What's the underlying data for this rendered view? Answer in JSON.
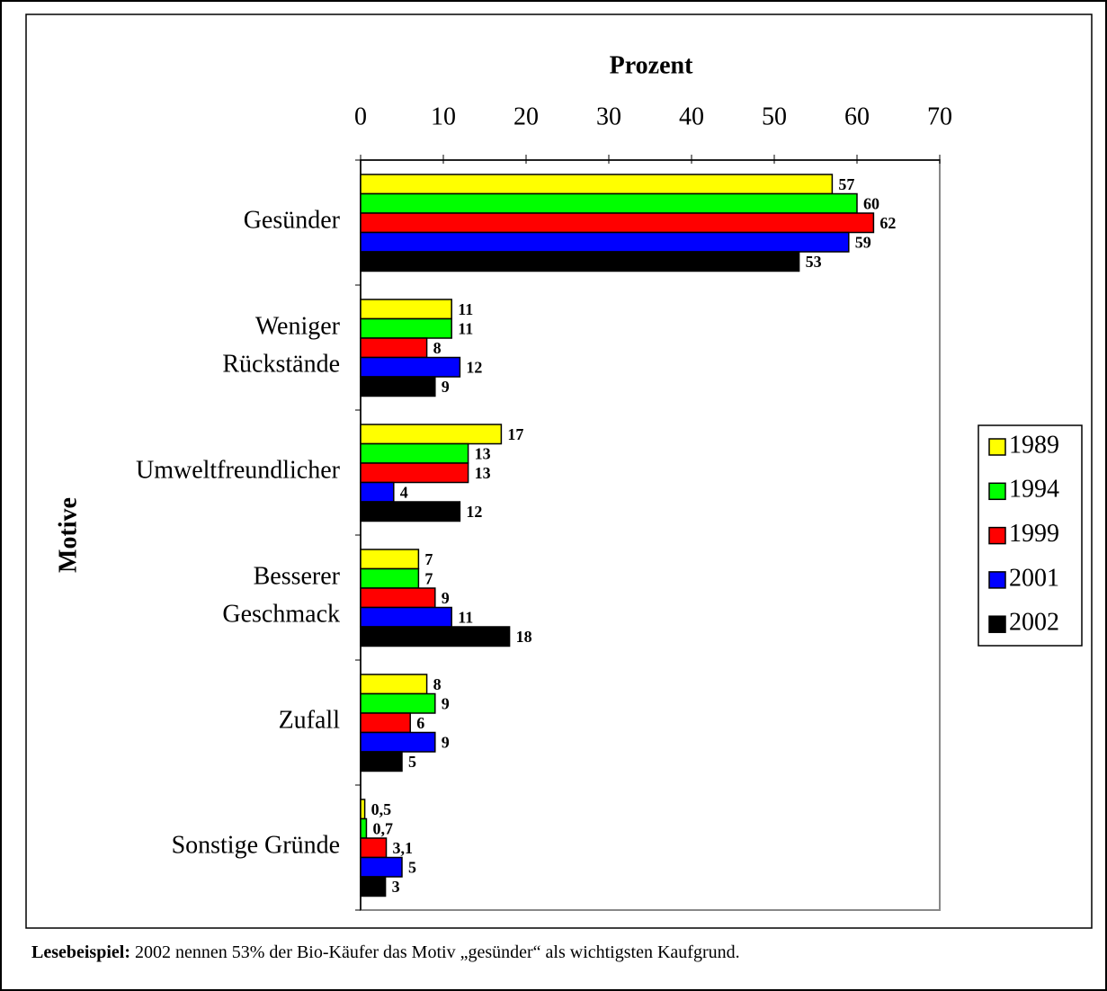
{
  "chart_data": {
    "type": "bar",
    "orientation": "horizontal",
    "xlabel": "Prozent",
    "ylabel": "Motive",
    "categories": [
      [
        "Gesünder"
      ],
      [
        "Weniger",
        "Rückstände"
      ],
      [
        "Umweltfreundlicher"
      ],
      [
        "Besserer",
        "Geschmack"
      ],
      [
        "Zufall"
      ],
      [
        "Sonstige Gründe"
      ]
    ],
    "series": [
      {
        "name": "1989",
        "color": "#ffff00",
        "values": [
          57,
          11,
          17,
          7,
          8,
          0.5
        ],
        "value_labels": [
          "57",
          "11",
          "17",
          "7",
          "8",
          "0,5"
        ]
      },
      {
        "name": "1994",
        "color": "#00ff00",
        "values": [
          60,
          11,
          13,
          7,
          9,
          0.7
        ],
        "value_labels": [
          "60",
          "11",
          "13",
          "7",
          "9",
          "0,7"
        ]
      },
      {
        "name": "1999",
        "color": "#ff0000",
        "values": [
          62,
          8,
          13,
          9,
          6,
          3.1
        ],
        "value_labels": [
          "62",
          "8",
          "13",
          "9",
          "6",
          "3,1"
        ]
      },
      {
        "name": "2001",
        "color": "#0000ff",
        "values": [
          59,
          12,
          4,
          11,
          9,
          5
        ],
        "value_labels": [
          "59",
          "12",
          "4",
          "11",
          "9",
          "5"
        ]
      },
      {
        "name": "2002",
        "color": "#000000",
        "values": [
          53,
          9,
          12,
          18,
          5,
          3
        ],
        "value_labels": [
          "53",
          "9",
          "12",
          "18",
          "5",
          "3"
        ]
      }
    ],
    "xlim": [
      0,
      70
    ],
    "xticks": [
      0,
      10,
      20,
      30,
      40,
      50,
      60,
      70
    ],
    "legend": "right"
  },
  "footnote": {
    "label": "Lesebeispiel:",
    "text": " 2002 nennen 53% der Bio-Käufer das Motiv „gesünder“ als wichtigsten Kaufgrund."
  }
}
